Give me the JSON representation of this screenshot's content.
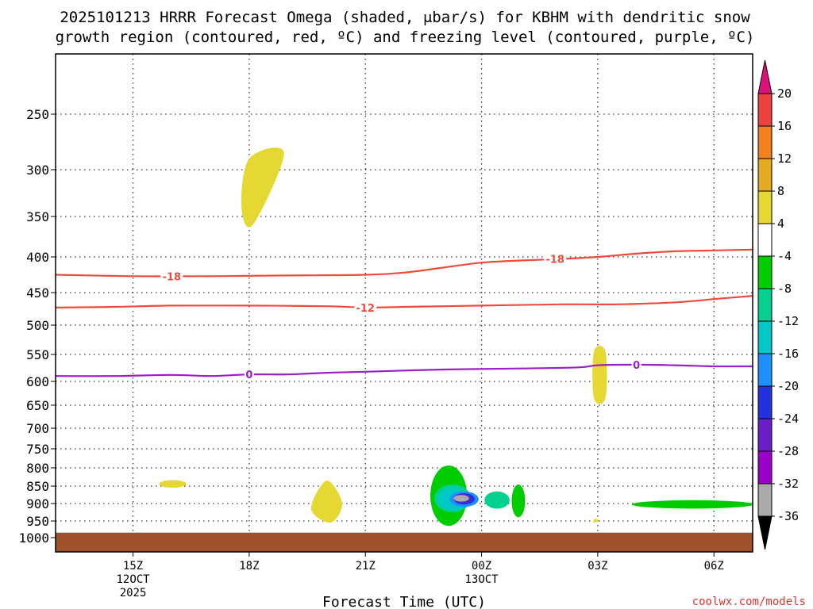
{
  "chart_data": {
    "type": "heatmap",
    "title_line1": "2025101213 HRRR Forecast Omega (shaded, μbar/s) for KBHM with dendritic snow",
    "title_line2": "growth region (contoured, red, ºC) and freezing level (contoured, purple, ºC)",
    "xlabel": "Forecast Time (UTC)",
    "x_range_hours": [
      13.0,
      31.0
    ],
    "x_ticks": [
      {
        "hour": 15,
        "label": "15Z",
        "sub1": "12OCT",
        "sub2": "2025"
      },
      {
        "hour": 18,
        "label": "18Z",
        "sub1": "",
        "sub2": ""
      },
      {
        "hour": 21,
        "label": "21Z",
        "sub1": "",
        "sub2": ""
      },
      {
        "hour": 24,
        "label": "00Z",
        "sub1": "13OCT",
        "sub2": ""
      },
      {
        "hour": 27,
        "label": "03Z",
        "sub1": "",
        "sub2": ""
      },
      {
        "hour": 30,
        "label": "06Z",
        "sub1": "",
        "sub2": ""
      }
    ],
    "y_ticks_hpa": [
      250,
      300,
      350,
      400,
      450,
      500,
      550,
      600,
      650,
      700,
      750,
      800,
      850,
      900,
      950,
      1000
    ],
    "y_range_hpa": [
      200,
      1025
    ],
    "surface_pressure_hpa": 985,
    "surface_color": "#a0522d",
    "colorbar": {
      "levels": [
        "-36",
        "-32",
        "-28",
        "-24",
        "-20",
        "-16",
        "-12",
        "-8",
        "-4",
        "4",
        "8",
        "12",
        "16",
        "20"
      ],
      "colors": [
        "#aaaaaa",
        "#9b00c9",
        "#6a1fc8",
        "#2233dd",
        "#1e8fff",
        "#00c8c8",
        "#00d090",
        "#00cc00",
        "#ffffff",
        "#e5d832",
        "#e5aa22",
        "#f08020",
        "#ef4040"
      ],
      "low_color": "#000000",
      "high_color": "#e0107a"
    },
    "omega_regions": [
      {
        "id": "upper-lift-18z",
        "band": "4 to 8",
        "color": "#e5d832",
        "points": [
          [
            18.0,
            290
          ],
          [
            18.9,
            285
          ],
          [
            18.1,
            360
          ],
          [
            17.8,
            340
          ]
        ]
      },
      {
        "id": "lift-03z-600",
        "band": "4 to 8",
        "color": "#e5d832",
        "points": [
          [
            26.9,
            545
          ],
          [
            27.2,
            545
          ],
          [
            27.2,
            635
          ],
          [
            26.9,
            635
          ]
        ]
      },
      {
        "id": "lift-16z-830",
        "band": "4 to 8",
        "color": "#e5d832",
        "points": [
          [
            15.8,
            838
          ],
          [
            16.25,
            840
          ],
          [
            15.85,
            850
          ]
        ]
      },
      {
        "id": "lift-20z-900",
        "band": "4 to 8",
        "color": "#e5d832",
        "points": [
          [
            20.0,
            835
          ],
          [
            20.4,
            900
          ],
          [
            20.1,
            955
          ],
          [
            19.6,
            915
          ]
        ]
      },
      {
        "id": "lift-03z-950",
        "band": "4 to 8",
        "color": "#e5d832",
        "points": [
          [
            26.9,
            945
          ],
          [
            27.0,
            945
          ],
          [
            27.0,
            950
          ],
          [
            26.9,
            955
          ]
        ]
      },
      {
        "id": "sink-core-green",
        "band": "-8 to -4",
        "color": "#00cc00",
        "points": [
          [
            22.8,
            808
          ],
          [
            23.5,
            798
          ],
          [
            23.4,
            960
          ]
        ]
      },
      {
        "id": "sink-core-cyan",
        "band": "-12 to -8",
        "color": "#00d090",
        "points": [
          [
            22.9,
            858
          ],
          [
            23.5,
            850
          ],
          [
            23.6,
            920
          ]
        ]
      },
      {
        "id": "sink-core-teal",
        "band": "-16 to -12",
        "color": "#00c8c8",
        "points": [
          [
            23.0,
            865
          ],
          [
            23.5,
            860
          ],
          [
            23.3,
            915
          ]
        ]
      },
      {
        "id": "sink-core-lightblue",
        "band": "-20 to -16",
        "color": "#1e8fff",
        "points": [
          [
            23.3,
            870
          ],
          [
            23.8,
            880
          ],
          [
            23.4,
            905
          ]
        ]
      },
      {
        "id": "sink-core-blue",
        "band": "-24 to -20",
        "color": "#2233dd",
        "points": [
          [
            23.4,
            875
          ],
          [
            23.7,
            880
          ],
          [
            23.4,
            898
          ]
        ]
      },
      {
        "id": "sink-core-purple",
        "band": "-28 to -24",
        "color": "#6a1fc8",
        "points": [
          [
            23.45,
            877
          ],
          [
            23.6,
            880
          ],
          [
            23.4,
            892
          ]
        ]
      },
      {
        "id": "sink-core-gray",
        "band": "-36 to -32",
        "color": "#aaaaaa",
        "points": [
          [
            23.4,
            880
          ],
          [
            23.55,
            880
          ],
          [
            23.4,
            890
          ]
        ]
      },
      {
        "id": "sink-east-green",
        "band": "-8 to -4",
        "color": "#00cc00",
        "points": [
          [
            24.9,
            850
          ],
          [
            25.0,
            855
          ],
          [
            25.0,
            935
          ]
        ]
      },
      {
        "id": "sink-east-cyan",
        "band": "-12 to -8",
        "color": "#00d090",
        "points": [
          [
            24.2,
            875
          ],
          [
            24.6,
            870
          ],
          [
            24.6,
            910
          ]
        ]
      },
      {
        "id": "sink-06z-green",
        "band": "-8 to -4",
        "color": "#00cc00",
        "points": [
          [
            28.0,
            895
          ],
          [
            30.1,
            910
          ],
          [
            30.9,
            900
          ]
        ]
      }
    ],
    "isotherms": [
      {
        "name": "dendritic -18",
        "label": "-18",
        "color": "#ee4b3e",
        "points": [
          [
            13.0,
            425
          ],
          [
            15.0,
            427
          ],
          [
            17.0,
            427
          ],
          [
            19.0,
            426
          ],
          [
            21.0,
            425
          ],
          [
            22.0,
            422
          ],
          [
            23.0,
            415
          ],
          [
            24.0,
            408
          ],
          [
            25.0,
            405
          ],
          [
            26.0,
            403
          ],
          [
            27.0,
            400
          ],
          [
            28.0,
            396
          ],
          [
            29.0,
            393
          ],
          [
            30.0,
            392
          ],
          [
            31.0,
            391
          ]
        ],
        "label_positions": [
          [
            16.0,
            427
          ],
          [
            25.9,
            403
          ]
        ]
      },
      {
        "name": "dendritic -12",
        "label": "-12",
        "color": "#ee4b3e",
        "points": [
          [
            13.0,
            473
          ],
          [
            14.5,
            472
          ],
          [
            16.0,
            470
          ],
          [
            18.0,
            470
          ],
          [
            20.0,
            471
          ],
          [
            21.0,
            473
          ],
          [
            22.0,
            472
          ],
          [
            24.0,
            470
          ],
          [
            26.0,
            468
          ],
          [
            27.5,
            468
          ],
          [
            29.0,
            465
          ],
          [
            30.0,
            460
          ],
          [
            31.0,
            455
          ]
        ],
        "label_positions": [
          [
            21.0,
            473
          ]
        ]
      },
      {
        "name": "freezing level 0",
        "label": "0",
        "color": "#9b1fc8",
        "points": [
          [
            13.0,
            590
          ],
          [
            14.5,
            590
          ],
          [
            16.0,
            588
          ],
          [
            17.0,
            590
          ],
          [
            18.0,
            587
          ],
          [
            19.0,
            587
          ],
          [
            20.0,
            584
          ],
          [
            21.0,
            582
          ],
          [
            23.0,
            578
          ],
          [
            25.0,
            576
          ],
          [
            26.5,
            574
          ],
          [
            27.0,
            570
          ],
          [
            28.0,
            569
          ],
          [
            29.0,
            570
          ],
          [
            30.0,
            572
          ],
          [
            31.0,
            572
          ]
        ],
        "label_positions": [
          [
            18.0,
            587
          ],
          [
            28.0,
            569
          ]
        ]
      }
    ],
    "credit": "coolwx.com/models"
  }
}
